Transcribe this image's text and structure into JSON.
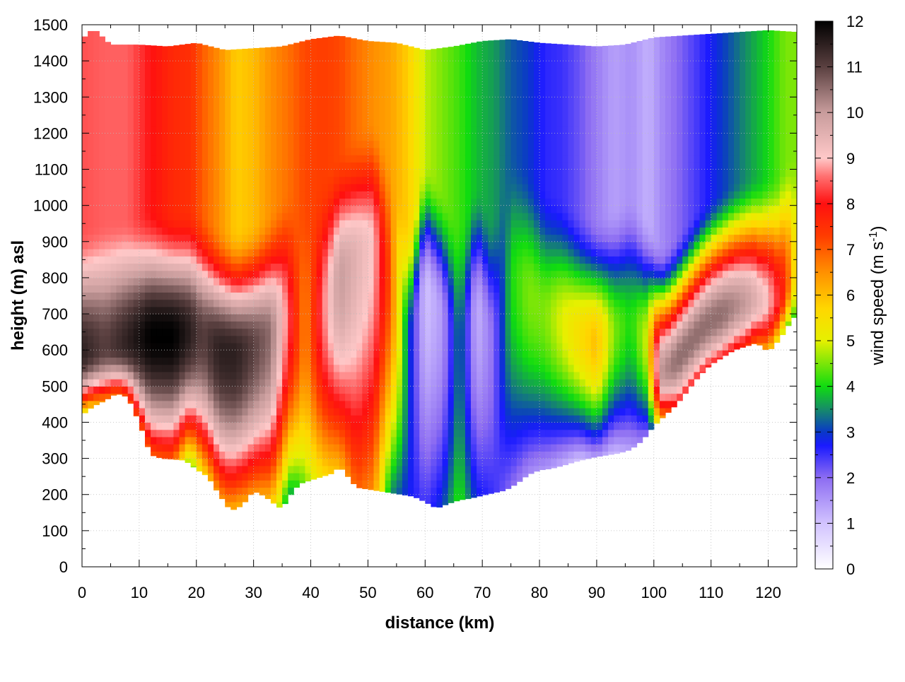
{
  "chart_data": {
    "type": "heatmap",
    "title": "",
    "xlabel": "distance (km)",
    "ylabel": "height (m) asl",
    "xlim": [
      0,
      125
    ],
    "ylim": [
      0,
      1500
    ],
    "x_ticks": [
      "0",
      "10",
      "20",
      "30",
      "40",
      "50",
      "60",
      "70",
      "80",
      "90",
      "100",
      "110",
      "120"
    ],
    "y_ticks": [
      "0",
      "100",
      "200",
      "300",
      "400",
      "500",
      "600",
      "700",
      "800",
      "900",
      "1000",
      "1100",
      "1200",
      "1300",
      "1400",
      "1500"
    ],
    "grid": true,
    "colorbar": {
      "label_main": "wind speed (m s",
      "label_sup": "-1",
      "label_end": ")",
      "range": [
        0,
        12
      ],
      "ticks": [
        "0",
        "1",
        "2",
        "3",
        "4",
        "5",
        "6",
        "7",
        "8",
        "9",
        "10",
        "11",
        "12"
      ],
      "colors": [
        [
          0,
          "#ffffff"
        ],
        [
          1,
          "#d2c3ff"
        ],
        [
          2,
          "#8c6cf2"
        ],
        [
          2.7,
          "#1a1aff"
        ],
        [
          3,
          "#0a38c8"
        ],
        [
          3.5,
          "#168c68"
        ],
        [
          4,
          "#10dc10"
        ],
        [
          5,
          "#e6f000"
        ],
        [
          5.7,
          "#ffd700"
        ],
        [
          6.5,
          "#ff9000"
        ],
        [
          7.3,
          "#ff3c00"
        ],
        [
          8,
          "#ff1010"
        ],
        [
          8.6,
          "#ff7070"
        ],
        [
          9,
          "#ffc8c8"
        ],
        [
          10,
          "#c89c9c"
        ],
        [
          11,
          "#5a4040"
        ],
        [
          12,
          "#000000"
        ]
      ]
    },
    "terrain_bottom_m": [
      [
        0,
        420
      ],
      [
        2,
        445
      ],
      [
        4,
        460
      ],
      [
        6,
        480
      ],
      [
        8,
        470
      ],
      [
        10,
        400
      ],
      [
        12,
        310
      ],
      [
        14,
        300
      ],
      [
        16,
        298
      ],
      [
        18,
        295
      ],
      [
        20,
        270
      ],
      [
        22,
        250
      ],
      [
        24,
        200
      ],
      [
        26,
        155
      ],
      [
        28,
        170
      ],
      [
        30,
        210
      ],
      [
        32,
        195
      ],
      [
        34,
        170
      ],
      [
        35,
        160
      ],
      [
        36,
        190
      ],
      [
        38,
        230
      ],
      [
        40,
        240
      ],
      [
        42,
        250
      ],
      [
        44,
        260
      ],
      [
        45,
        280
      ],
      [
        46,
        260
      ],
      [
        48,
        220
      ],
      [
        50,
        215
      ],
      [
        52,
        210
      ],
      [
        54,
        205
      ],
      [
        56,
        200
      ],
      [
        58,
        195
      ],
      [
        60,
        180
      ],
      [
        62,
        162
      ],
      [
        64,
        175
      ],
      [
        66,
        185
      ],
      [
        68,
        190
      ],
      [
        70,
        198
      ],
      [
        72,
        205
      ],
      [
        74,
        212
      ],
      [
        76,
        230
      ],
      [
        78,
        255
      ],
      [
        80,
        268
      ],
      [
        82,
        272
      ],
      [
        84,
        280
      ],
      [
        86,
        290
      ],
      [
        88,
        298
      ],
      [
        90,
        305
      ],
      [
        92,
        310
      ],
      [
        94,
        315
      ],
      [
        96,
        325
      ],
      [
        98,
        350
      ],
      [
        100,
        390
      ],
      [
        102,
        420
      ],
      [
        104,
        450
      ],
      [
        106,
        490
      ],
      [
        108,
        530
      ],
      [
        110,
        560
      ],
      [
        112,
        580
      ],
      [
        114,
        600
      ],
      [
        116,
        610
      ],
      [
        118,
        620
      ],
      [
        120,
        595
      ],
      [
        122,
        630
      ],
      [
        124,
        680
      ],
      [
        125,
        700
      ]
    ],
    "top_m": [
      [
        0,
        1460
      ],
      [
        2,
        1490
      ],
      [
        5,
        1445
      ],
      [
        10,
        1445
      ],
      [
        15,
        1440
      ],
      [
        20,
        1450
      ],
      [
        25,
        1430
      ],
      [
        30,
        1435
      ],
      [
        35,
        1440
      ],
      [
        40,
        1460
      ],
      [
        45,
        1470
      ],
      [
        50,
        1455
      ],
      [
        55,
        1450
      ],
      [
        60,
        1430
      ],
      [
        65,
        1440
      ],
      [
        70,
        1455
      ],
      [
        75,
        1460
      ],
      [
        80,
        1450
      ],
      [
        85,
        1445
      ],
      [
        90,
        1440
      ],
      [
        95,
        1445
      ],
      [
        100,
        1465
      ],
      [
        105,
        1470
      ],
      [
        110,
        1475
      ],
      [
        115,
        1480
      ],
      [
        120,
        1485
      ],
      [
        125,
        1480
      ]
    ],
    "speed_profiles_m_s": [
      {
        "x": 0,
        "low": 5.0,
        "jet": 11.5,
        "jet_h": 590,
        "upper": 8.4
      },
      {
        "x": 4,
        "low": 6.5,
        "jet": 11.0,
        "jet_h": 610,
        "upper": 8.5
      },
      {
        "x": 8,
        "low": 7.0,
        "jet": 11.5,
        "jet_h": 620,
        "upper": 8.5
      },
      {
        "x": 12,
        "low": 7.0,
        "jet": 12.0,
        "jet_h": 640,
        "upper": 8.0
      },
      {
        "x": 16,
        "low": 7.0,
        "jet": 12.0,
        "jet_h": 640,
        "upper": 7.6
      },
      {
        "x": 19,
        "low": 4.2,
        "jet": 11.5,
        "jet_h": 650,
        "upper": 7.5
      },
      {
        "x": 21,
        "low": 5.5,
        "jet": 11.0,
        "jet_h": 640,
        "upper": 7.0
      },
      {
        "x": 24,
        "low": 6.5,
        "jet": 11.5,
        "jet_h": 600,
        "upper": 6.5
      },
      {
        "x": 27,
        "low": 6.0,
        "jet": 11.5,
        "jet_h": 590,
        "upper": 5.8
      },
      {
        "x": 30,
        "low": 6.5,
        "jet": 11.0,
        "jet_h": 610,
        "upper": 6.0
      },
      {
        "x": 33,
        "low": 6.0,
        "jet": 10.5,
        "jet_h": 640,
        "upper": 6.5
      },
      {
        "x": 36,
        "low": 3.5,
        "jet": 8.5,
        "jet_h": 700,
        "upper": 6.8
      },
      {
        "x": 39,
        "low": 4.5,
        "jet": 6.5,
        "jet_h": 650,
        "upper": 7.2
      },
      {
        "x": 42,
        "low": 5.5,
        "jet": 8.5,
        "jet_h": 720,
        "upper": 7.3
      },
      {
        "x": 45,
        "low": 6.0,
        "jet": 10.0,
        "jet_h": 800,
        "upper": 7.2
      },
      {
        "x": 48,
        "low": 7.0,
        "jet": 9.5,
        "jet_h": 860,
        "upper": 6.8
      },
      {
        "x": 51,
        "low": 6.5,
        "jet": 9.0,
        "jet_h": 900,
        "upper": 6.5
      },
      {
        "x": 54,
        "low": 3.5,
        "jet": 7.0,
        "jet_h": 800,
        "upper": 6.3
      },
      {
        "x": 57,
        "low": 2.8,
        "jet": 3.2,
        "jet_h": 600,
        "upper": 5.8
      },
      {
        "x": 60,
        "low": 2.4,
        "jet": 1.0,
        "jet_h": 780,
        "upper": 4.8
      },
      {
        "x": 63,
        "low": 3.0,
        "jet": 1.5,
        "jet_h": 700,
        "upper": 4.5
      },
      {
        "x": 66,
        "low": 4.2,
        "jet": 3.5,
        "jet_h": 600,
        "upper": 4.2
      },
      {
        "x": 69,
        "low": 2.8,
        "jet": 1.2,
        "jet_h": 720,
        "upper": 3.8
      },
      {
        "x": 72,
        "low": 2.5,
        "jet": 2.0,
        "jet_h": 620,
        "upper": 3.6
      },
      {
        "x": 75,
        "low": 2.0,
        "jet": 4.0,
        "jet_h": 800,
        "upper": 3.2
      },
      {
        "x": 78,
        "low": 1.6,
        "jet": 4.5,
        "jet_h": 760,
        "upper": 3.0
      },
      {
        "x": 81,
        "low": 1.5,
        "jet": 4.5,
        "jet_h": 700,
        "upper": 2.6
      },
      {
        "x": 84,
        "low": 1.2,
        "jet": 5.0,
        "jet_h": 680,
        "upper": 2.5
      },
      {
        "x": 87,
        "low": 0.9,
        "jet": 5.5,
        "jet_h": 640,
        "upper": 2.2
      },
      {
        "x": 90,
        "low": 1.5,
        "jet": 6.0,
        "jet_h": 620,
        "upper": 1.8
      },
      {
        "x": 93,
        "low": 1.0,
        "jet": 4.5,
        "jet_h": 650,
        "upper": 1.4
      },
      {
        "x": 96,
        "low": 1.4,
        "jet": 4.0,
        "jet_h": 680,
        "upper": 1.6
      },
      {
        "x": 99,
        "low": 2.0,
        "jet": 5.0,
        "jet_h": 620,
        "upper": 1.2
      },
      {
        "x": 101,
        "low": 6.0,
        "jet": 10.0,
        "jet_h": 540,
        "upper": 1.6
      },
      {
        "x": 104,
        "low": 8.0,
        "jet": 10.5,
        "jet_h": 560,
        "upper": 2.0
      },
      {
        "x": 108,
        "low": 8.0,
        "jet": 10.5,
        "jet_h": 620,
        "upper": 2.5
      },
      {
        "x": 112,
        "low": 8.0,
        "jet": 10.5,
        "jet_h": 680,
        "upper": 3.0
      },
      {
        "x": 116,
        "low": 7.5,
        "jet": 10.0,
        "jet_h": 720,
        "upper": 3.5
      },
      {
        "x": 120,
        "low": 6.0,
        "jet": 9.0,
        "jet_h": 740,
        "upper": 4.0
      },
      {
        "x": 123,
        "low": 4.5,
        "jet": 7.5,
        "jet_h": 740,
        "upper": 4.5
      },
      {
        "x": 125,
        "low": 4.0,
        "jet": 5.0,
        "jet_h": 700,
        "upper": 4.5
      }
    ]
  }
}
